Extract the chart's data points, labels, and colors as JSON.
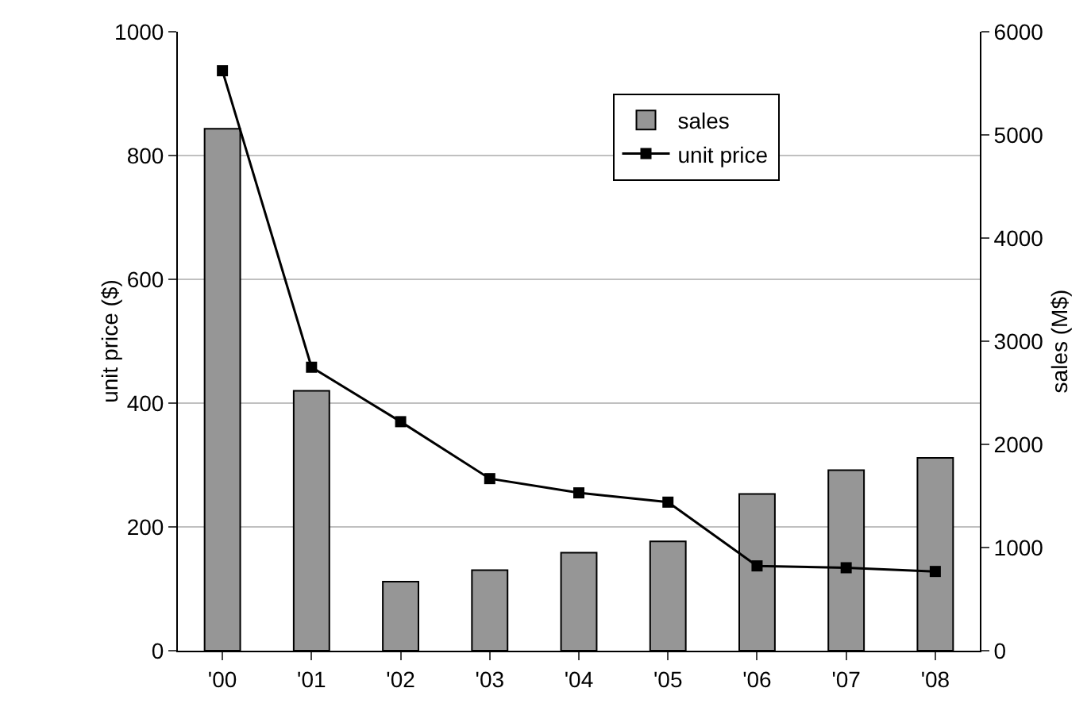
{
  "chart_data": {
    "type": "bar",
    "ylabel": "unit price ($)",
    "y2label": "sales (M$)",
    "categories": [
      "'00",
      "'01",
      "'02",
      "'03",
      "'04",
      "'05",
      "'06",
      "'07",
      "'08"
    ],
    "series": [
      {
        "name": "sales",
        "axis": "y2",
        "color": "#969696",
        "values": [
          5060,
          2520,
          670,
          780,
          950,
          1060,
          1520,
          1750,
          1870
        ]
      },
      {
        "name": "unit price",
        "type": "line",
        "axis": "y",
        "color": "#000000",
        "marker": "square",
        "values": [
          937,
          458,
          370,
          278,
          255,
          240,
          137,
          134,
          128
        ]
      }
    ],
    "ylim": [
      0,
      1000
    ],
    "yticks": [
      0,
      200,
      400,
      600,
      800,
      1000
    ],
    "y2lim": [
      0,
      6000
    ],
    "y2ticks": [
      0,
      1000,
      2000,
      3000,
      4000,
      5000,
      6000
    ],
    "grid": "y",
    "legend": "top right"
  }
}
